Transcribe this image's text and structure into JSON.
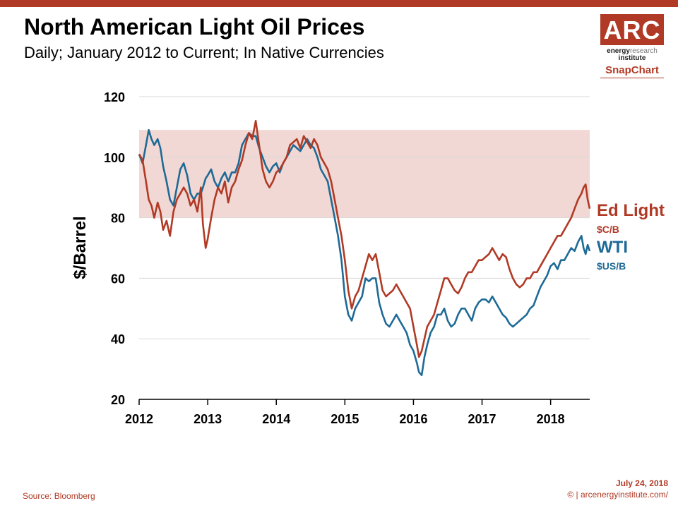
{
  "header": {
    "title": "North American Light Oil Prices",
    "subtitle": "Daily; January 2012 to Current; In Native Currencies"
  },
  "logo": {
    "brand": "ARC",
    "line1_a": "energy",
    "line1_b": "research",
    "line2": "institute",
    "snap": "SnapChart"
  },
  "footer": {
    "source": "Source: Bloomberg",
    "date": "July 24, 2018",
    "site": "© | arcenergyinstitute.com/"
  },
  "colors": {
    "accent": "#b03a25",
    "ed_light": "#b03a25",
    "wti": "#1e6a96",
    "band": "#f1d8d4"
  },
  "chart_data": {
    "type": "line",
    "title": "North American Light Oil Prices",
    "ylabel": "$/Barrel",
    "xlabel": "",
    "ylim": [
      20,
      120
    ],
    "xlim": [
      2012,
      2018.57
    ],
    "yticks": [
      20,
      40,
      60,
      80,
      100,
      120
    ],
    "xticks": [
      "2012",
      "2013",
      "2014",
      "2015",
      "2016",
      "2017",
      "2018"
    ],
    "shaded_band": {
      "from": 80,
      "to": 109
    },
    "grid": "horizontal",
    "series": [
      {
        "name": "Ed Light",
        "unit": "$C/B",
        "x": [
          2012.0,
          2012.05,
          2012.1,
          2012.14,
          2012.18,
          2012.22,
          2012.27,
          2012.31,
          2012.35,
          2012.4,
          2012.45,
          2012.5,
          2012.55,
          2012.6,
          2012.65,
          2012.7,
          2012.75,
          2012.8,
          2012.85,
          2012.9,
          2012.93,
          2012.97,
          2013.0,
          2013.05,
          2013.1,
          2013.15,
          2013.2,
          2013.25,
          2013.3,
          2013.35,
          2013.4,
          2013.45,
          2013.5,
          2013.55,
          2013.6,
          2013.65,
          2013.7,
          2013.75,
          2013.8,
          2013.85,
          2013.9,
          2013.95,
          2014.0,
          2014.05,
          2014.1,
          2014.15,
          2014.2,
          2014.25,
          2014.3,
          2014.35,
          2014.4,
          2014.45,
          2014.5,
          2014.55,
          2014.6,
          2014.65,
          2014.7,
          2014.75,
          2014.8,
          2014.85,
          2014.9,
          2014.95,
          2015.0,
          2015.05,
          2015.1,
          2015.15,
          2015.2,
          2015.25,
          2015.3,
          2015.35,
          2015.4,
          2015.45,
          2015.5,
          2015.55,
          2015.6,
          2015.65,
          2015.7,
          2015.75,
          2015.8,
          2015.85,
          2015.9,
          2015.95,
          2016.0,
          2016.05,
          2016.08,
          2016.12,
          2016.16,
          2016.2,
          2016.25,
          2016.3,
          2016.35,
          2016.4,
          2016.45,
          2016.5,
          2016.55,
          2016.6,
          2016.65,
          2016.7,
          2016.75,
          2016.8,
          2016.85,
          2016.9,
          2016.95,
          2017.0,
          2017.05,
          2017.1,
          2017.15,
          2017.2,
          2017.25,
          2017.3,
          2017.35,
          2017.4,
          2017.45,
          2017.5,
          2017.55,
          2017.6,
          2017.65,
          2017.7,
          2017.75,
          2017.8,
          2017.85,
          2017.9,
          2017.95,
          2018.0,
          2018.05,
          2018.1,
          2018.15,
          2018.2,
          2018.25,
          2018.3,
          2018.35,
          2018.4,
          2018.45,
          2018.48,
          2018.51,
          2018.54,
          2018.57
        ],
        "values": [
          101,
          99,
          92,
          86,
          84,
          80,
          85,
          82,
          76,
          79,
          74,
          82,
          86,
          88,
          90,
          88,
          84,
          86,
          82,
          90,
          78,
          70,
          73,
          80,
          86,
          90,
          88,
          92,
          85,
          90,
          92,
          96,
          99,
          104,
          108,
          106,
          112,
          104,
          96,
          92,
          90,
          92,
          95,
          96,
          98,
          100,
          104,
          105,
          106,
          103,
          107,
          105,
          103,
          106,
          104,
          100,
          98,
          96,
          92,
          86,
          80,
          74,
          66,
          56,
          50,
          54,
          56,
          60,
          64,
          68,
          66,
          68,
          62,
          56,
          54,
          55,
          56,
          58,
          56,
          54,
          52,
          50,
          44,
          38,
          34,
          36,
          40,
          44,
          46,
          48,
          52,
          56,
          60,
          60,
          58,
          56,
          55,
          57,
          60,
          62,
          62,
          64,
          66,
          66,
          67,
          68,
          70,
          68,
          66,
          68,
          67,
          63,
          60,
          58,
          57,
          58,
          60,
          60,
          62,
          62,
          64,
          66,
          68,
          70,
          72,
          74,
          74,
          76,
          78,
          80,
          83,
          86,
          88,
          90,
          91,
          86,
          83
        ]
      },
      {
        "name": "WTI",
        "unit": "$US/B",
        "x": [
          2012.0,
          2012.05,
          2012.1,
          2012.14,
          2012.18,
          2012.22,
          2012.27,
          2012.31,
          2012.35,
          2012.4,
          2012.45,
          2012.5,
          2012.55,
          2012.6,
          2012.65,
          2012.7,
          2012.75,
          2012.8,
          2012.85,
          2012.9,
          2012.93,
          2012.97,
          2013.0,
          2013.05,
          2013.1,
          2013.15,
          2013.2,
          2013.25,
          2013.3,
          2013.35,
          2013.4,
          2013.45,
          2013.5,
          2013.55,
          2013.6,
          2013.65,
          2013.7,
          2013.75,
          2013.8,
          2013.85,
          2013.9,
          2013.95,
          2014.0,
          2014.05,
          2014.1,
          2014.15,
          2014.2,
          2014.25,
          2014.3,
          2014.35,
          2014.4,
          2014.45,
          2014.5,
          2014.55,
          2014.6,
          2014.65,
          2014.7,
          2014.75,
          2014.8,
          2014.85,
          2014.9,
          2014.95,
          2015.0,
          2015.05,
          2015.1,
          2015.15,
          2015.2,
          2015.25,
          2015.3,
          2015.35,
          2015.4,
          2015.45,
          2015.5,
          2015.55,
          2015.6,
          2015.65,
          2015.7,
          2015.75,
          2015.8,
          2015.85,
          2015.9,
          2015.95,
          2016.0,
          2016.05,
          2016.08,
          2016.12,
          2016.16,
          2016.2,
          2016.25,
          2016.3,
          2016.35,
          2016.4,
          2016.45,
          2016.5,
          2016.55,
          2016.6,
          2016.65,
          2016.7,
          2016.75,
          2016.8,
          2016.85,
          2016.9,
          2016.95,
          2017.0,
          2017.05,
          2017.1,
          2017.15,
          2017.2,
          2017.25,
          2017.3,
          2017.35,
          2017.4,
          2017.45,
          2017.5,
          2017.55,
          2017.6,
          2017.65,
          2017.7,
          2017.75,
          2017.8,
          2017.85,
          2017.9,
          2017.95,
          2018.0,
          2018.05,
          2018.1,
          2018.15,
          2018.2,
          2018.25,
          2018.3,
          2018.35,
          2018.4,
          2018.45,
          2018.48,
          2018.51,
          2018.54,
          2018.57
        ],
        "values": [
          101,
          98,
          104,
          109,
          106,
          104,
          106,
          103,
          97,
          92,
          86,
          84,
          90,
          96,
          98,
          94,
          88,
          86,
          88,
          88,
          90,
          93,
          94,
          96,
          92,
          90,
          93,
          95,
          92,
          95,
          95,
          98,
          104,
          106,
          108,
          107,
          107,
          103,
          100,
          97,
          95,
          97,
          98,
          95,
          98,
          100,
          102,
          104,
          103,
          102,
          104,
          106,
          104,
          103,
          100,
          96,
          94,
          92,
          86,
          80,
          74,
          66,
          54,
          48,
          46,
          50,
          52,
          54,
          60,
          59,
          60,
          60,
          52,
          48,
          45,
          44,
          46,
          48,
          46,
          44,
          42,
          38,
          36,
          32,
          29,
          28,
          34,
          38,
          42,
          44,
          48,
          48,
          50,
          46,
          44,
          45,
          48,
          50,
          50,
          48,
          46,
          50,
          52,
          53,
          53,
          52,
          54,
          52,
          50,
          48,
          47,
          45,
          44,
          45,
          46,
          47,
          48,
          50,
          51,
          54,
          57,
          59,
          61,
          64,
          65,
          63,
          66,
          66,
          68,
          70,
          69,
          72,
          74,
          70,
          68,
          71,
          69
        ]
      }
    ]
  }
}
